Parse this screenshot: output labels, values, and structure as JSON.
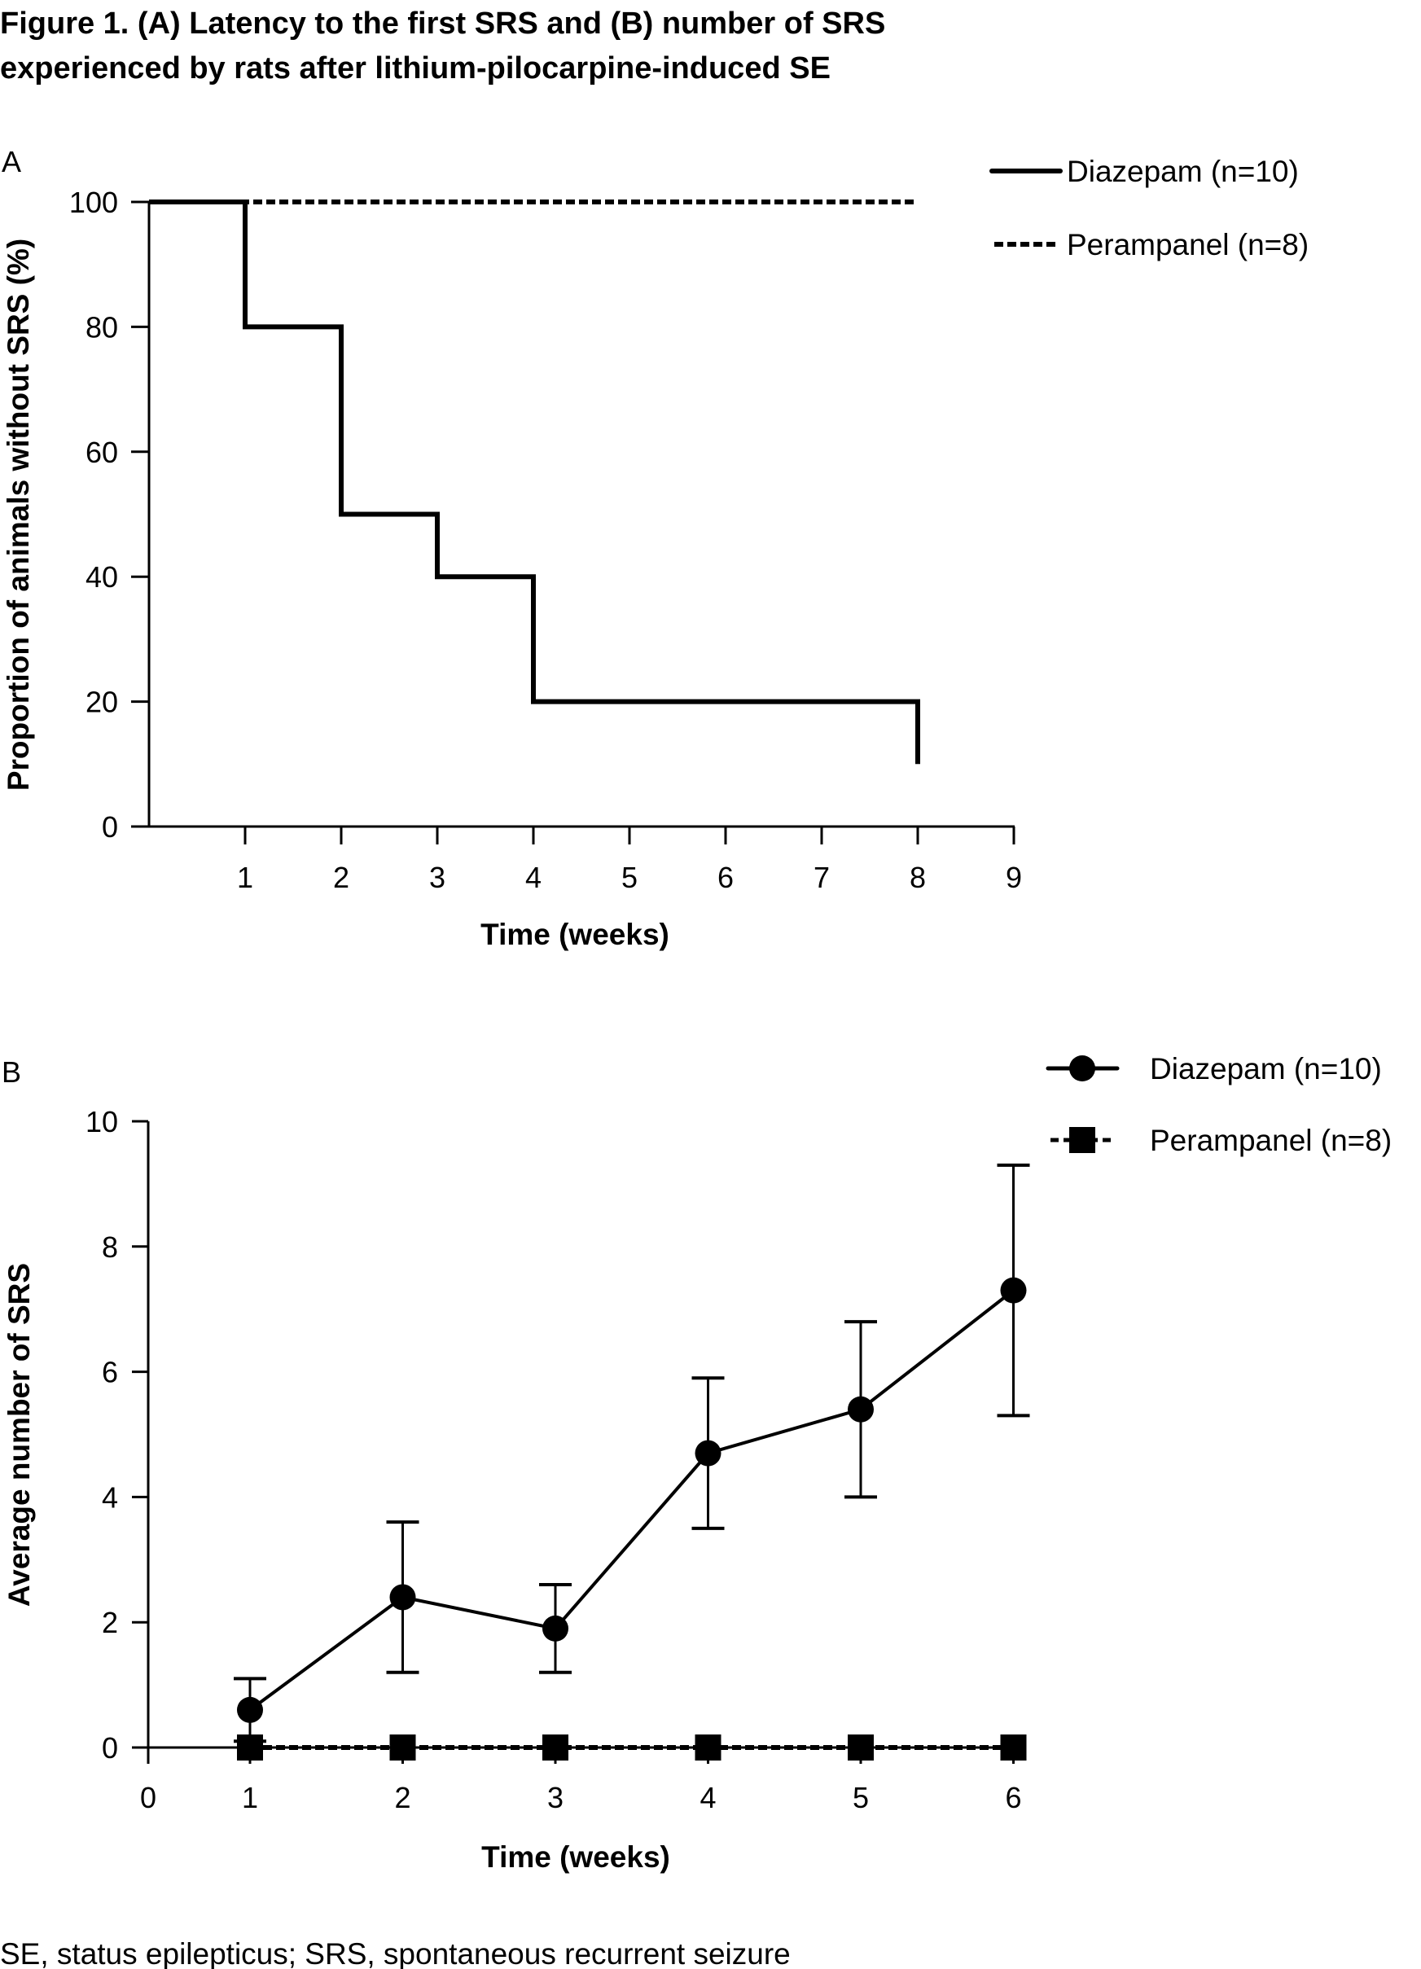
{
  "figure": {
    "title_line1": "Figure 1. (A) Latency to the first SRS and (B) number of SRS",
    "title_line2": "experienced by rats after lithium-pilocarpine-induced SE",
    "footnote": "SE, status epilepticus; SRS, spontaneous recurrent seizure"
  },
  "chart_data": [
    {
      "panel": "A",
      "type": "line",
      "subtype": "step (Kaplan-Meier)",
      "xlabel": "Time (weeks)",
      "ylabel": "Proportion of animals without SRS (%)",
      "xlim": [
        0,
        9
      ],
      "ylim": [
        0,
        100
      ],
      "xticks": [
        1,
        2,
        3,
        4,
        5,
        6,
        7,
        8,
        9
      ],
      "yticks": [
        0,
        20,
        40,
        60,
        80,
        100
      ],
      "grid": false,
      "legend_position": "top-right",
      "series": [
        {
          "name": "Diazepam (n=10)",
          "style": "solid",
          "color": "#000000",
          "x": [
            0,
            1,
            2,
            3,
            4,
            8
          ],
          "y": [
            100,
            80,
            50,
            40,
            20,
            10
          ]
        },
        {
          "name": "Perampanel (n=8)",
          "style": "dashed",
          "color": "#000000",
          "x": [
            0,
            8
          ],
          "y": [
            100,
            100
          ]
        }
      ]
    },
    {
      "panel": "B",
      "type": "line",
      "subtype": "line with markers and error bars",
      "xlabel": "Time (weeks)",
      "ylabel": "Average number of SRS",
      "xlim": [
        0,
        6
      ],
      "ylim": [
        0,
        10
      ],
      "xticks": [
        0,
        1,
        2,
        3,
        4,
        5,
        6
      ],
      "yticks": [
        0,
        2,
        4,
        6,
        8,
        10
      ],
      "grid": false,
      "legend_position": "top-right",
      "series": [
        {
          "name": "Diazepam (n=10)",
          "style": "solid",
          "marker": "circle",
          "color": "#000000",
          "x": [
            1,
            2,
            3,
            4,
            5,
            6
          ],
          "y": [
            0.6,
            2.4,
            1.9,
            4.7,
            5.4,
            7.3
          ],
          "err_upper": [
            1.1,
            3.6,
            2.6,
            5.9,
            6.8,
            9.3
          ],
          "err_lower": [
            0.1,
            1.2,
            1.2,
            3.5,
            4.0,
            5.3
          ]
        },
        {
          "name": "Perampanel (n=8)",
          "style": "dashed",
          "marker": "square",
          "color": "#000000",
          "x": [
            1,
            2,
            3,
            4,
            5,
            6
          ],
          "y": [
            0,
            0,
            0,
            0,
            0,
            0
          ]
        }
      ]
    }
  ]
}
